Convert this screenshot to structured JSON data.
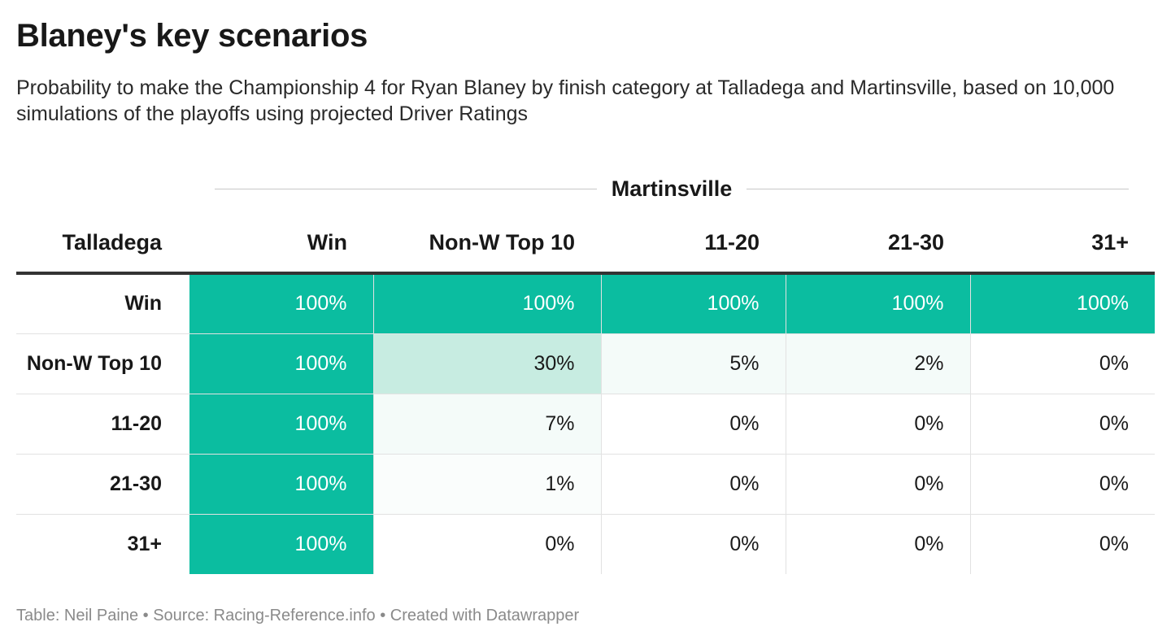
{
  "title": "Blaney's key scenarios",
  "subtitle": "Probability to make the Championship 4 for Ryan Blaney by finish category at Talladega and Martinsville, based on 10,000 simulations of the playoffs using projected Driver Ratings",
  "footer": "Table: Neil Paine • Source: Racing-Reference.info • Created with Datawrapper",
  "colors": {
    "high": "#0bbda0",
    "mid": "#c7ece1",
    "low": "#f4fbf9",
    "lowest": "#fafdfc",
    "none": "#ffffff"
  },
  "chart_data": {
    "type": "table",
    "column_group_label": "Martinsville",
    "row_header_label": "Talladega",
    "columns": [
      "Win",
      "Non-W Top 10",
      "11-20",
      "21-30",
      "31+"
    ],
    "rows": [
      {
        "label": "Win",
        "values": [
          "100%",
          "100%",
          "100%",
          "100%",
          "100%"
        ],
        "numeric": [
          100,
          100,
          100,
          100,
          100
        ]
      },
      {
        "label": "Non-W Top 10",
        "values": [
          "100%",
          "30%",
          "5%",
          "2%",
          "0%"
        ],
        "numeric": [
          100,
          30,
          5,
          2,
          0
        ]
      },
      {
        "label": "11-20",
        "values": [
          "100%",
          "7%",
          "0%",
          "0%",
          "0%"
        ],
        "numeric": [
          100,
          7,
          0,
          0,
          0
        ]
      },
      {
        "label": "21-30",
        "values": [
          "100%",
          "1%",
          "0%",
          "0%",
          "0%"
        ],
        "numeric": [
          100,
          1,
          0,
          0,
          0
        ]
      },
      {
        "label": "31+",
        "values": [
          "100%",
          "0%",
          "0%",
          "0%",
          "0%"
        ],
        "numeric": [
          100,
          0,
          0,
          0,
          0
        ]
      }
    ]
  }
}
